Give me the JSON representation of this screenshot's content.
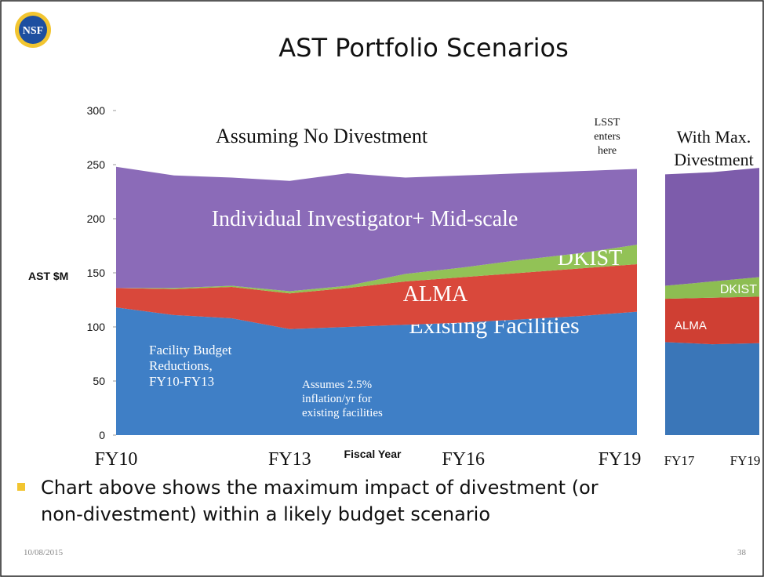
{
  "slide": {
    "title": "AST Portfolio Scenarios",
    "bullet": [
      "Chart above shows the maximum impact of divestment (or",
      "non-divestment) within a likely budget scenario"
    ],
    "date": "10/08/2015",
    "page": "38"
  },
  "chart_data": [
    {
      "type": "area",
      "stacked": true,
      "ylabel": "AST $M",
      "xlabel": "Fiscal Year",
      "annotations": [
        "Assuming No Divestment",
        [
          "LSST",
          "enters",
          "here"
        ],
        [
          "Facility Budget",
          "Reductions,",
          "FY10-FY13"
        ],
        [
          "Assumes 2.5%",
          "inflation/yr for",
          "existing facilities"
        ]
      ],
      "categories": [
        "FY10",
        null,
        null,
        "FY13",
        null,
        null,
        "FY16",
        null,
        null,
        "FY19"
      ],
      "ylim": [
        0,
        300
      ],
      "yticks": [
        0,
        50,
        100,
        150,
        200,
        250,
        300
      ],
      "series": [
        {
          "name": "Existing Facilities",
          "color": "#3f7fc6",
          "values": [
            118,
            111,
            108,
            98,
            100,
            102,
            104,
            107,
            110,
            114
          ]
        },
        {
          "name": "ALMA",
          "color": "#d9483b",
          "values": [
            18,
            24,
            29,
            33,
            36,
            40,
            42,
            43,
            44,
            44
          ]
        },
        {
          "name": "DKIST",
          "color": "#92c256",
          "values": [
            0,
            1,
            1,
            2,
            2,
            7,
            9,
            12,
            14,
            18
          ]
        },
        {
          "name": "Individual Investigator+ Mid-scale",
          "color": "#8b6bb8",
          "values": [
            112,
            104,
            100,
            102,
            104,
            89,
            85,
            80,
            76,
            70
          ]
        }
      ]
    },
    {
      "type": "area",
      "stacked": true,
      "title": [
        "With Max.",
        "Divestment"
      ],
      "categories": [
        "FY17",
        null,
        "FY19"
      ],
      "ylim": [
        0,
        300
      ],
      "series": [
        {
          "color": "#3a76b8",
          "values": [
            86,
            84,
            85
          ]
        },
        {
          "name": "ALMA",
          "color": "#cf3f33",
          "values": [
            40,
            43,
            43
          ]
        },
        {
          "name": "DKIST",
          "color": "#8dbd52",
          "values": [
            12,
            15,
            18
          ]
        },
        {
          "color": "#7d5cab",
          "values": [
            103,
            101,
            101
          ]
        }
      ]
    }
  ]
}
